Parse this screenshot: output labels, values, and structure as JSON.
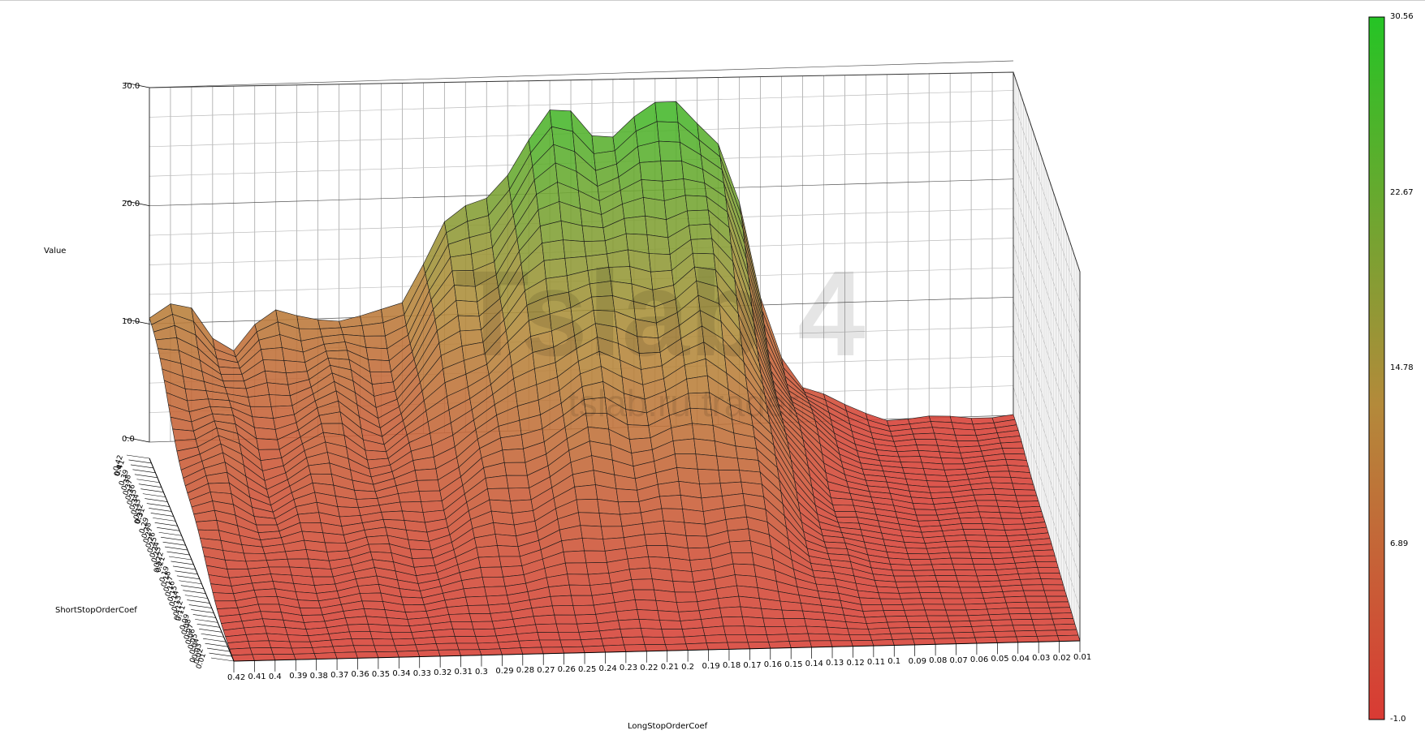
{
  "chart_data": {
    "type": "surface3d",
    "zlabel": "Value",
    "xlabel": "LongStopOrderCoef",
    "ylabel": "ShortStopOrderCoef",
    "z_ticks": [
      "30.0",
      "20.0",
      "10.0",
      "0.0"
    ],
    "zlim": [
      0,
      30
    ],
    "x_ticks": [
      "0.42",
      "0.41",
      "0.4",
      "0.39",
      "0.38",
      "0.37",
      "0.36",
      "0.35",
      "0.34",
      "0.33",
      "0.32",
      "0.31",
      "0.3",
      "0.29",
      "0.28",
      "0.27",
      "0.26",
      "0.25",
      "0.24",
      "0.23",
      "0.22",
      "0.21",
      "0.2",
      "0.19",
      "0.18",
      "0.17",
      "0.16",
      "0.15",
      "0.14",
      "0.13",
      "0.12",
      "0.11",
      "0.1",
      "0.09",
      "0.08",
      "0.07",
      "0.06",
      "0.05",
      "0.04",
      "0.03",
      "0.02",
      "0.01"
    ],
    "y_ticks": [
      "0.42",
      "0.41",
      "0.4",
      "0.39",
      "0.38",
      "0.37",
      "0.36",
      "0.35",
      "0.34",
      "0.33",
      "0.32",
      "0.31",
      "0.3",
      "0.29",
      "0.28",
      "0.27",
      "0.26",
      "0.25",
      "0.24",
      "0.23",
      "0.22",
      "0.21",
      "0.2",
      "0.19",
      "0.18",
      "0.17",
      "0.16",
      "0.15",
      "0.14",
      "0.13",
      "0.12",
      "0.11",
      "0.1",
      "0.09",
      "0.08",
      "0.07",
      "0.06",
      "0.05",
      "0.04",
      "0.03",
      "0.02",
      "0.01"
    ],
    "y_first_tick": "0",
    "colorbar": {
      "labels": [
        "30.56",
        "22.67",
        "14.78",
        "6.89",
        "-1.0"
      ],
      "min": -1.0,
      "max": 30.56,
      "colors": {
        "low": "#d93a34",
        "high": "#25c425"
      }
    },
    "ridge_profile_back": {
      "x": [
        "0.42",
        "0.4",
        "0.38",
        "0.36",
        "0.34",
        "0.32",
        "0.3",
        "0.28",
        "0.26",
        "0.24",
        "0.22",
        "0.2",
        "0.18",
        "0.16",
        "0.14",
        "0.12",
        "0.1",
        "0.08",
        "0.06",
        "0.04",
        "0.02",
        "0.01"
      ],
      "values": [
        10.5,
        11,
        8,
        10,
        11,
        9,
        11,
        17,
        19,
        24,
        27,
        25,
        26,
        28,
        23,
        8,
        3,
        1,
        0,
        0,
        0,
        0
      ]
    },
    "grid": true
  },
  "watermark_text": [
    "Tslab 4",
    "tslab.ru trader"
  ]
}
